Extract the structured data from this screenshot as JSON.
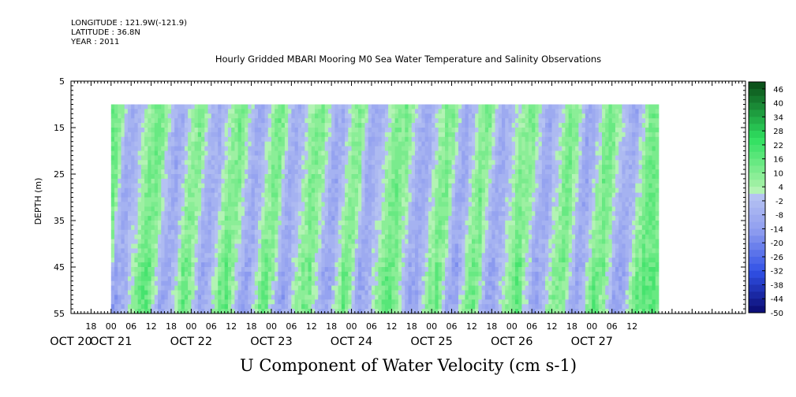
{
  "header": {
    "longitude": "LONGITUDE : 121.9W(-121.9)",
    "latitude": "LATITUDE : 36.8N",
    "year": "YEAR : 2011"
  },
  "chart_data": {
    "type": "heatmap",
    "title": "Hourly Gridded MBARI Mooring M0 Sea Water Temperature and Salinity Observations",
    "variable": "U Component of Water Velocity (cm s-1)",
    "ylabel": "DEPTH (m)",
    "y_axis": {
      "range": [
        5,
        55
      ],
      "inverted": true,
      "ticks": [
        5,
        15,
        25,
        35,
        45,
        55
      ]
    },
    "x_axis": {
      "unit": "hours",
      "range_hours_from_oct20_12": [
        0,
        202
      ],
      "hour_ticks": [
        "18",
        "00",
        "06",
        "12",
        "18",
        "00",
        "06",
        "12",
        "18",
        "00",
        "06",
        "12",
        "18",
        "00",
        "06",
        "12",
        "18",
        "00",
        "06",
        "12",
        "18",
        "00",
        "06",
        "12",
        "18",
        "00",
        "06",
        "12"
      ],
      "day_labels": [
        "OCT 20",
        "OCT 21",
        "OCT 22",
        "OCT 23",
        "OCT 24",
        "OCT 25",
        "OCT 26",
        "OCT 27"
      ]
    },
    "data_extent": {
      "depth_m": [
        10,
        55
      ],
      "start": "OCT 21 00",
      "end": "OCT 27 ~20"
    },
    "colorbar": {
      "labels": [
        "46",
        "40",
        "34",
        "28",
        "22",
        "16",
        "10",
        "4",
        "-2",
        "-8",
        "-14",
        "-20",
        "-26",
        "-32",
        "-38",
        "-44",
        "-50"
      ],
      "range": [
        -50,
        49
      ],
      "interval": 3
    },
    "colors": {
      "negative": "#9aa8ef",
      "neutral": "#b6c3f2",
      "positive": "#36e86a",
      "strong_positive": "#0a5a1c",
      "strong_negative": "#14148a"
    },
    "bands": [
      {
        "t": "OCT 21 00",
        "phase": "green"
      },
      {
        "t": "OCT 21 03",
        "phase": "blue"
      },
      {
        "t": "OCT 21 12",
        "phase": "green"
      },
      {
        "t": "OCT 21 18",
        "phase": "blue"
      },
      {
        "t": "OCT 22 00",
        "phase": "green"
      },
      {
        "t": "OCT 22 05",
        "phase": "blue"
      },
      {
        "t": "OCT 22 12",
        "phase": "green"
      },
      {
        "t": "OCT 22 18",
        "phase": "blue"
      },
      {
        "t": "OCT 23 00",
        "phase": "green"
      },
      {
        "t": "OCT 23 05",
        "phase": "blue"
      },
      {
        "t": "OCT 23 12",
        "phase": "green"
      },
      {
        "t": "OCT 23 18",
        "phase": "blue"
      },
      {
        "t": "OCT 24 00",
        "phase": "green"
      },
      {
        "t": "OCT 24 04",
        "phase": "blue"
      },
      {
        "t": "OCT 24 13",
        "phase": "green"
      },
      {
        "t": "OCT 24 20",
        "phase": "blue"
      },
      {
        "t": "OCT 25 03",
        "phase": "green"
      },
      {
        "t": "OCT 25 08",
        "phase": "blue"
      },
      {
        "t": "OCT 25 14",
        "phase": "green"
      },
      {
        "t": "OCT 25 19",
        "phase": "blue"
      },
      {
        "t": "OCT 26 03",
        "phase": "green"
      },
      {
        "t": "OCT 26 09",
        "phase": "blue"
      },
      {
        "t": "OCT 26 16",
        "phase": "green"
      },
      {
        "t": "OCT 26 21",
        "phase": "blue"
      },
      {
        "t": "OCT 27 03",
        "phase": "green"
      },
      {
        "t": "OCT 27 10",
        "phase": "blue"
      },
      {
        "t": "OCT 27 16",
        "phase": "green"
      }
    ]
  }
}
